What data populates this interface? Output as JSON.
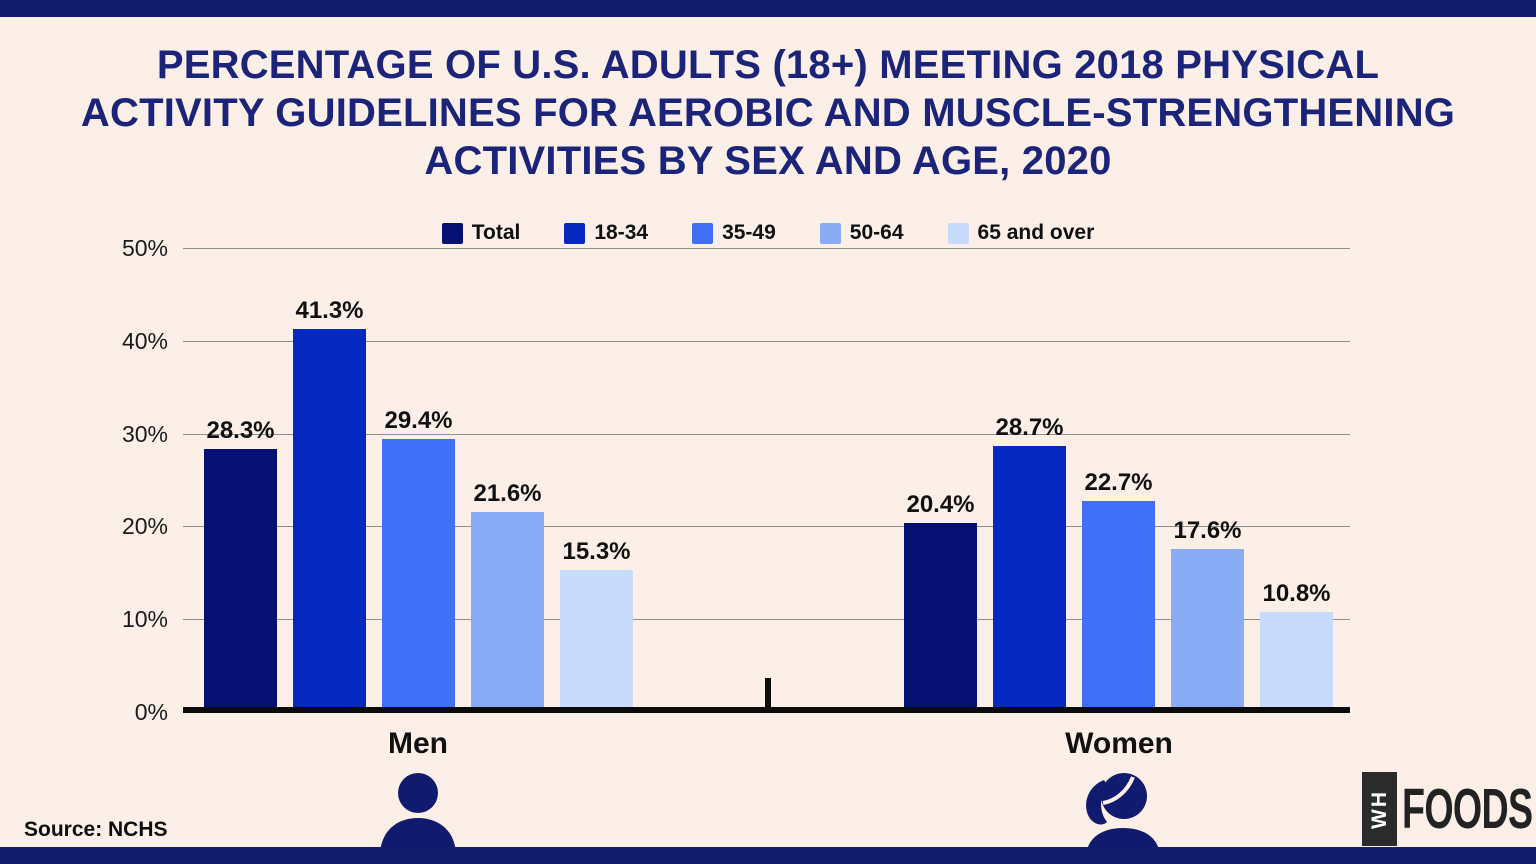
{
  "page": {
    "background": "#FBEFE7",
    "band_color": "#131C6D",
    "icon_color": "#101B70",
    "title_color": "#1B2478",
    "gridline_color": "#8F8F8F",
    "axis_color": "#0B0B0B"
  },
  "title": {
    "lines": [
      "PERCENTAGE OF U.S. ADULTS (18+) MEETING 2018 PHYSICAL",
      "ACTIVITY GUIDELINES FOR AEROBIC AND MUSCLE-STRENGTHENING",
      "ACTIVITIES BY SEX AND AGE, 2020"
    ]
  },
  "chart_data": {
    "type": "bar",
    "title": "PERCENTAGE OF U.S. ADULTS (18+) MEETING 2018 PHYSICAL ACTIVITY GUIDELINES FOR AEROBIC AND MUSCLE-STRENGTHENING ACTIVITIES BY SEX AND AGE, 2020",
    "categories": [
      "Men",
      "Women"
    ],
    "series": [
      {
        "name": "Total",
        "color": "#041173",
        "values": [
          28.3,
          20.4
        ]
      },
      {
        "name": "18-34",
        "color": "#0529C0",
        "values": [
          41.3,
          28.7
        ]
      },
      {
        "name": "35-49",
        "color": "#3F70F7",
        "values": [
          29.4,
          22.7
        ]
      },
      {
        "name": "50-64",
        "color": "#8AACF6",
        "values": [
          21.6,
          17.6
        ]
      },
      {
        "name": "65 and over",
        "color": "#C9DBFA",
        "values": [
          15.3,
          10.8
        ]
      }
    ],
    "ylabel": "",
    "ylim": [
      0,
      50
    ],
    "yticks": [
      "0%",
      "10%",
      "20%",
      "30%",
      "40%",
      "50%"
    ],
    "value_suffix": "%",
    "grid": true,
    "legend_position": "top"
  },
  "footer": {
    "source": "Source: NCHS",
    "logo": {
      "vertical_text": "WH",
      "main_text": "FOODS"
    }
  }
}
